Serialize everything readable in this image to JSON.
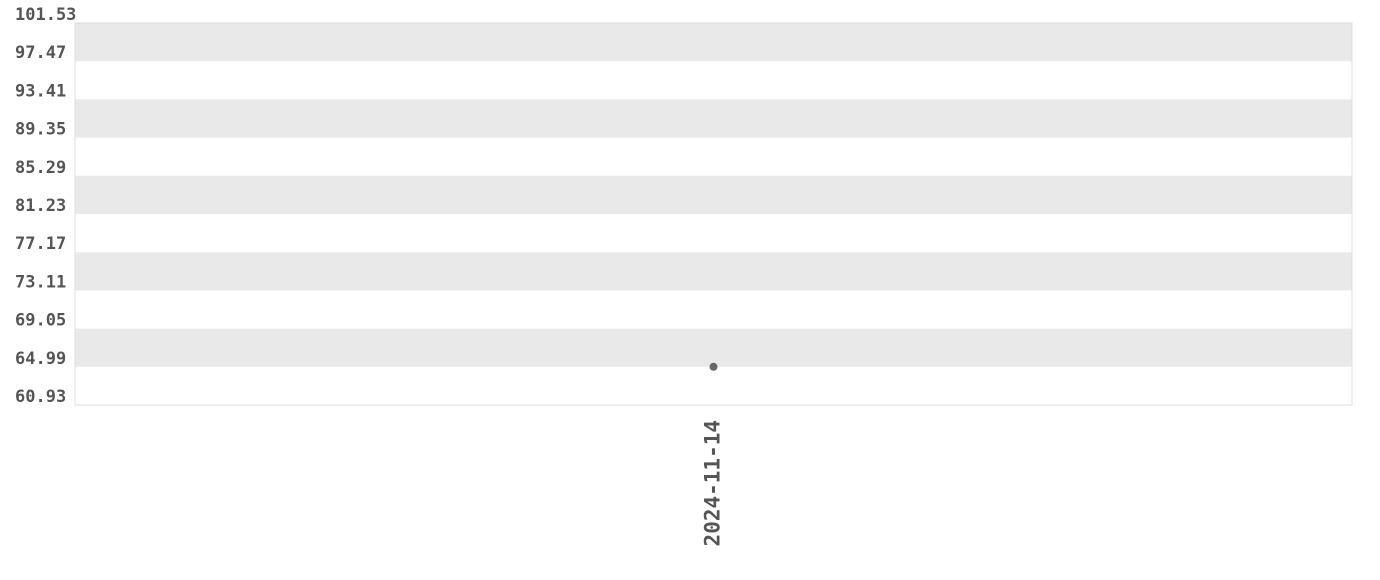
{
  "chart_data": {
    "type": "line",
    "categories": [
      "2024-11-14"
    ],
    "series": [
      {
        "color": "#666666",
        "values": [
          64.99
        ]
      }
    ],
    "ylim": [
      60.93,
      101.53
    ],
    "yticks": [
      60.93,
      64.99,
      69.05,
      73.11,
      77.17,
      81.23,
      85.29,
      89.35,
      93.41,
      97.47,
      101.53
    ],
    "grid": true
  }
}
